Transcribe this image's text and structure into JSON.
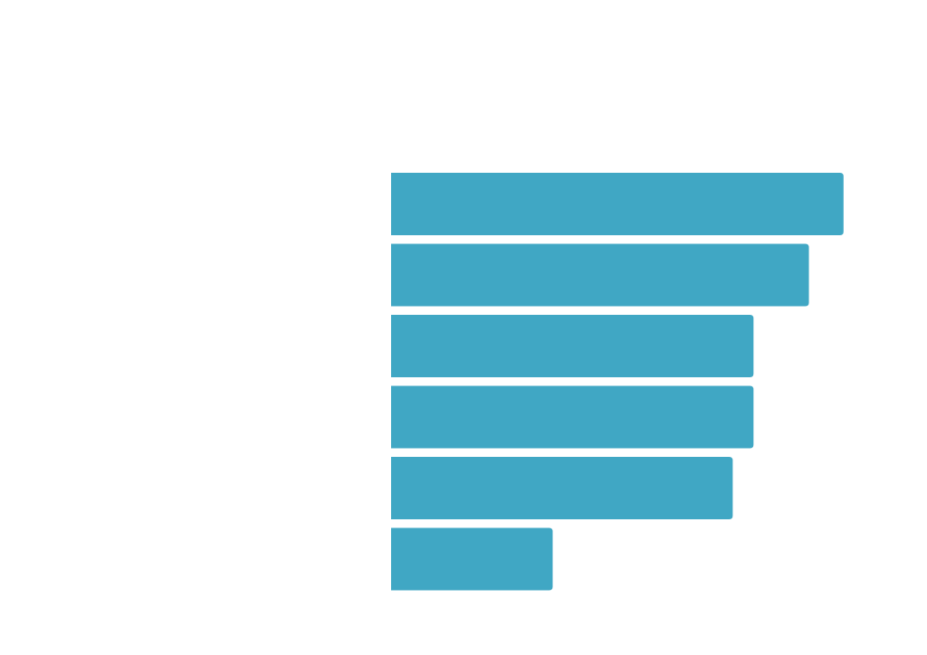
{
  "chart_data": {
    "type": "bar",
    "orientation": "horizontal",
    "categories": [
      "",
      "",
      "",
      "",
      "",
      ""
    ],
    "values": [
      98,
      90.5,
      78.5,
      78.5,
      74,
      35
    ],
    "xlim": [
      0,
      100
    ],
    "grid": false,
    "legend": "none",
    "title": "",
    "xlabel": "",
    "ylabel": ""
  },
  "colors": {
    "bar": "#40A7C4",
    "background": "#ffffff"
  }
}
